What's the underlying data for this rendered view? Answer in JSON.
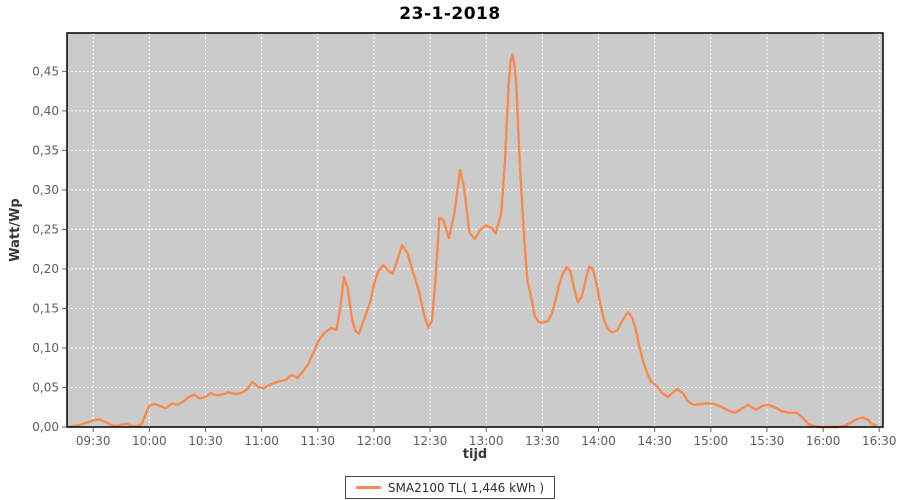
{
  "chart_data": {
    "type": "line",
    "title": "23-1-2018",
    "xlabel": "tijd",
    "ylabel": "Watt/Wp",
    "grid": "white-dashed",
    "legend_position": "bottom-center",
    "legend": {
      "label": "SMA2100 TL( 1,446 kWh )"
    },
    "colors": {
      "series": "#F98A4F",
      "plot_bg": "#CBCBCB",
      "grid": "#FFFFFF",
      "border": "#000000",
      "tick_text": "#5E5E5E"
    },
    "x_axis": {
      "ticks": [
        "09:30",
        "10:00",
        "10:30",
        "11:00",
        "11:30",
        "12:00",
        "12:30",
        "13:00",
        "13:30",
        "14:00",
        "14:30",
        "15:00",
        "15:30",
        "16:00",
        "16:30"
      ],
      "range": [
        "09:16",
        "16:32"
      ]
    },
    "y_axis": {
      "ticks": [
        "0,00",
        "0,05",
        "0,10",
        "0,15",
        "0,20",
        "0,25",
        "0,30",
        "0,35",
        "0,40",
        "0,45"
      ],
      "tick_values": [
        0,
        0.05,
        0.1,
        0.15,
        0.2,
        0.25,
        0.3,
        0.35,
        0.4,
        0.45
      ],
      "range": [
        0,
        0.4985
      ]
    },
    "series": [
      {
        "name": "SMA2100 TL( 1,446 kWh )",
        "data": [
          [
            "09:18",
            0.001
          ],
          [
            "09:22",
            0.002
          ],
          [
            "09:26",
            0.005
          ],
          [
            "09:30",
            0.008
          ],
          [
            "09:33",
            0.01
          ],
          [
            "09:36",
            0.007
          ],
          [
            "09:39",
            0.003
          ],
          [
            "09:42",
            0.001
          ],
          [
            "09:45",
            0.003
          ],
          [
            "09:48",
            0.004
          ],
          [
            "09:51",
            0.001
          ],
          [
            "09:54",
            0.001
          ],
          [
            "09:56",
            0.004
          ],
          [
            "09:58",
            0.016
          ],
          [
            "10:00",
            0.027
          ],
          [
            "10:03",
            0.029
          ],
          [
            "10:06",
            0.026
          ],
          [
            "10:09",
            0.024
          ],
          [
            "10:12",
            0.03
          ],
          [
            "10:15",
            0.028
          ],
          [
            "10:18",
            0.032
          ],
          [
            "10:21",
            0.038
          ],
          [
            "10:24",
            0.041
          ],
          [
            "10:27",
            0.036
          ],
          [
            "10:30",
            0.038
          ],
          [
            "10:33",
            0.043
          ],
          [
            "10:36",
            0.04
          ],
          [
            "10:39",
            0.041
          ],
          [
            "10:42",
            0.044
          ],
          [
            "10:45",
            0.042
          ],
          [
            "10:48",
            0.042
          ],
          [
            "10:52",
            0.047
          ],
          [
            "10:55",
            0.057
          ],
          [
            "10:58",
            0.051
          ],
          [
            "11:01",
            0.049
          ],
          [
            "11:04",
            0.053
          ],
          [
            "11:07",
            0.056
          ],
          [
            "11:10",
            0.058
          ],
          [
            "11:13",
            0.06
          ],
          [
            "11:16",
            0.066
          ],
          [
            "11:19",
            0.062
          ],
          [
            "11:22",
            0.07
          ],
          [
            "11:25",
            0.08
          ],
          [
            "11:28",
            0.096
          ],
          [
            "11:31",
            0.112
          ],
          [
            "11:34",
            0.12
          ],
          [
            "11:37",
            0.125
          ],
          [
            "11:40",
            0.123
          ],
          [
            "11:42",
            0.15
          ],
          [
            "11:44",
            0.19
          ],
          [
            "11:46",
            0.175
          ],
          [
            "11:48",
            0.14
          ],
          [
            "11:50",
            0.122
          ],
          [
            "11:52",
            0.118
          ],
          [
            "11:55",
            0.138
          ],
          [
            "11:58",
            0.158
          ],
          [
            "12:00",
            0.18
          ],
          [
            "12:02",
            0.196
          ],
          [
            "12:05",
            0.205
          ],
          [
            "12:08",
            0.197
          ],
          [
            "12:10",
            0.194
          ],
          [
            "12:13",
            0.215
          ],
          [
            "12:15",
            0.23
          ],
          [
            "12:18",
            0.22
          ],
          [
            "12:21",
            0.195
          ],
          [
            "12:24",
            0.172
          ],
          [
            "12:27",
            0.14
          ],
          [
            "12:29",
            0.126
          ],
          [
            "12:31",
            0.135
          ],
          [
            "12:33",
            0.19
          ],
          [
            "12:35",
            0.265
          ],
          [
            "12:37",
            0.262
          ],
          [
            "12:40",
            0.239
          ],
          [
            "12:43",
            0.27
          ],
          [
            "12:46",
            0.325
          ],
          [
            "12:48",
            0.305
          ],
          [
            "12:51",
            0.246
          ],
          [
            "12:54",
            0.238
          ],
          [
            "12:57",
            0.25
          ],
          [
            "13:00",
            0.255
          ],
          [
            "13:03",
            0.252
          ],
          [
            "13:05",
            0.245
          ],
          [
            "13:08",
            0.27
          ],
          [
            "13:10",
            0.335
          ],
          [
            "13:12",
            0.435
          ],
          [
            "13:13",
            0.462
          ],
          [
            "13:14",
            0.471
          ],
          [
            "13:15",
            0.46
          ],
          [
            "13:16",
            0.435
          ],
          [
            "13:18",
            0.33
          ],
          [
            "13:19",
            0.29
          ],
          [
            "13:20",
            0.25
          ],
          [
            "13:21",
            0.215
          ],
          [
            "13:22",
            0.185
          ],
          [
            "13:24",
            0.165
          ],
          [
            "13:26",
            0.14
          ],
          [
            "13:28",
            0.133
          ],
          [
            "13:30",
            0.132
          ],
          [
            "13:33",
            0.134
          ],
          [
            "13:35",
            0.143
          ],
          [
            "13:37",
            0.16
          ],
          [
            "13:39",
            0.18
          ],
          [
            "13:41",
            0.195
          ],
          [
            "13:43",
            0.202
          ],
          [
            "13:45",
            0.197
          ],
          [
            "13:47",
            0.175
          ],
          [
            "13:49",
            0.158
          ],
          [
            "13:51",
            0.165
          ],
          [
            "13:53",
            0.185
          ],
          [
            "13:55",
            0.203
          ],
          [
            "13:57",
            0.2
          ],
          [
            "13:59",
            0.18
          ],
          [
            "14:01",
            0.155
          ],
          [
            "14:03",
            0.135
          ],
          [
            "14:05",
            0.124
          ],
          [
            "14:07",
            0.12
          ],
          [
            "14:10",
            0.122
          ],
          [
            "14:12",
            0.132
          ],
          [
            "14:15",
            0.143
          ],
          [
            "14:16",
            0.145
          ],
          [
            "14:18",
            0.138
          ],
          [
            "14:20",
            0.122
          ],
          [
            "14:22",
            0.1
          ],
          [
            "14:24",
            0.082
          ],
          [
            "14:26",
            0.068
          ],
          [
            "14:28",
            0.058
          ],
          [
            "14:31",
            0.052
          ],
          [
            "14:34",
            0.043
          ],
          [
            "14:37",
            0.038
          ],
          [
            "14:40",
            0.044
          ],
          [
            "14:42",
            0.048
          ],
          [
            "14:45",
            0.043
          ],
          [
            "14:48",
            0.032
          ],
          [
            "14:51",
            0.028
          ],
          [
            "14:54",
            0.029
          ],
          [
            "14:58",
            0.03
          ],
          [
            "15:02",
            0.029
          ],
          [
            "15:06",
            0.025
          ],
          [
            "15:10",
            0.02
          ],
          [
            "15:13",
            0.018
          ],
          [
            "15:17",
            0.024
          ],
          [
            "15:20",
            0.028
          ],
          [
            "15:24",
            0.022
          ],
          [
            "15:28",
            0.027
          ],
          [
            "15:31",
            0.028
          ],
          [
            "15:35",
            0.024
          ],
          [
            "15:38",
            0.02
          ],
          [
            "15:42",
            0.018
          ],
          [
            "15:46",
            0.018
          ],
          [
            "15:49",
            0.012
          ],
          [
            "15:52",
            0.004
          ],
          [
            "15:55",
            0.001
          ],
          [
            "15:58",
            0.0
          ],
          [
            "16:03",
            0.0
          ],
          [
            "16:08",
            0.0
          ],
          [
            "16:12",
            0.002
          ],
          [
            "16:15",
            0.006
          ],
          [
            "16:18",
            0.01
          ],
          [
            "16:21",
            0.012
          ],
          [
            "16:24",
            0.009
          ],
          [
            "16:26",
            0.004
          ],
          [
            "16:28",
            0.002
          ]
        ]
      }
    ]
  }
}
